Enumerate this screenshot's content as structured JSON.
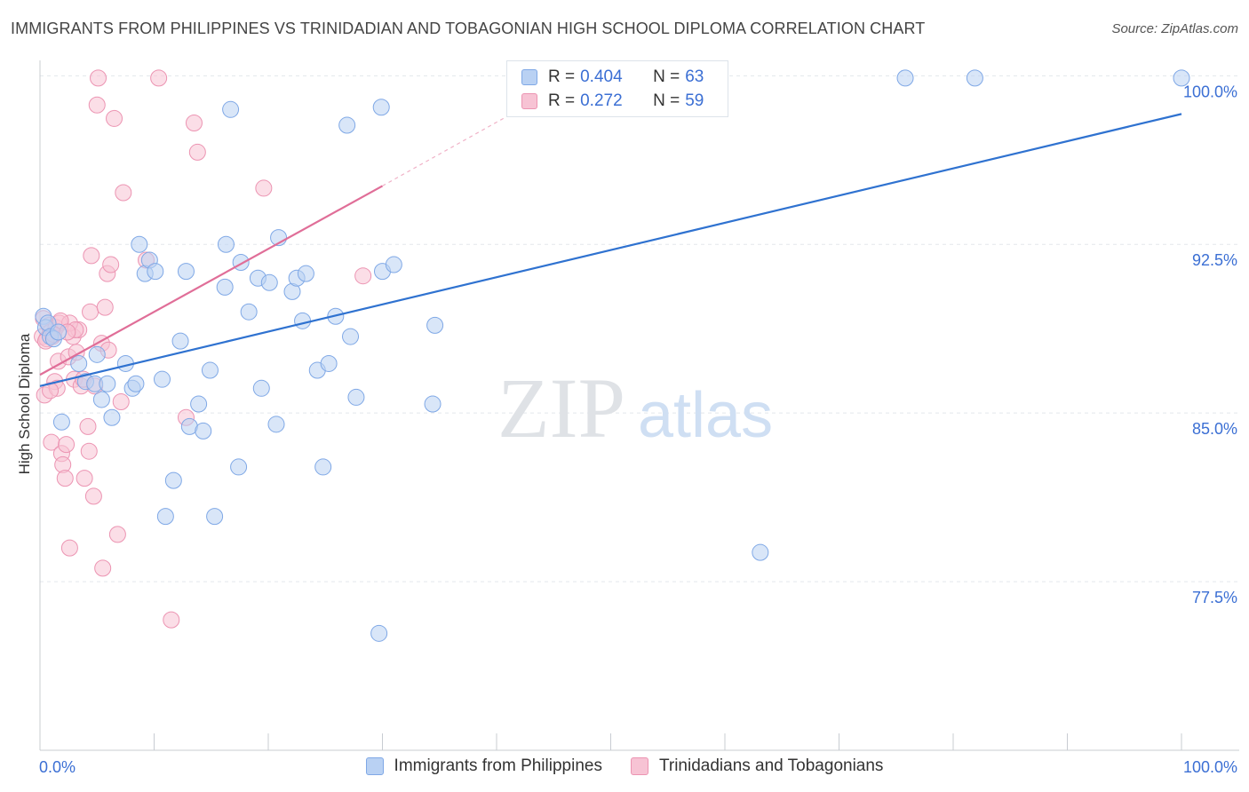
{
  "title": "IMMIGRANTS FROM PHILIPPINES VS TRINIDADIAN AND TOBAGONIAN HIGH SCHOOL DIPLOMA CORRELATION CHART",
  "source": "Source: ZipAtlas.com",
  "watermark": {
    "zip": "ZIP",
    "atlas": "atlas"
  },
  "legend_top": {
    "rows": [
      {
        "r_label": "R =",
        "r_value": "0.404",
        "n_label": "N =",
        "n_value": "63"
      },
      {
        "r_label": "R =",
        "r_value": "0.272",
        "n_label": "N =",
        "n_value": "59"
      }
    ]
  },
  "colors": {
    "blue_fill": "#b9d1f3",
    "blue_stroke": "#7fa8e6",
    "blue_line": "#2f72d0",
    "pink_fill": "#f7c3d4",
    "pink_stroke": "#ec94b2",
    "pink_line": "#e06e98",
    "axis_text": "#3b6fd4",
    "grid": "#e3e7ec"
  },
  "chart_data": {
    "type": "scatter",
    "title": "IMMIGRANTS FROM PHILIPPINES VS TRINIDADIAN AND TOBAGONIAN HIGH SCHOOL DIPLOMA CORRELATION CHART",
    "xlabel": "",
    "ylabel": "High School Diploma",
    "xlim": [
      0,
      100
    ],
    "ylim": [
      70.0,
      101.0
    ],
    "x_tick_labels": [
      "0.0%",
      "100.0%"
    ],
    "y_ticks": [
      77.5,
      85.0,
      92.5,
      100.0
    ],
    "y_tick_labels": [
      "77.5%",
      "85.0%",
      "92.5%",
      "100.0%"
    ],
    "grid": true,
    "legend_position": "bottom",
    "series": [
      {
        "name": "Immigrants from Philippines",
        "color": "#b9d1f3",
        "points": [
          [
            0.3,
            89.3
          ],
          [
            0.5,
            88.8
          ],
          [
            0.7,
            89.0
          ],
          [
            0.9,
            88.4
          ],
          [
            1.2,
            88.3
          ],
          [
            1.6,
            88.6
          ],
          [
            1.9,
            84.6
          ],
          [
            3.4,
            87.2
          ],
          [
            4.0,
            86.4
          ],
          [
            4.8,
            86.3
          ],
          [
            5.0,
            87.6
          ],
          [
            5.4,
            85.6
          ],
          [
            5.9,
            86.3
          ],
          [
            6.3,
            84.8
          ],
          [
            7.5,
            87.2
          ],
          [
            8.1,
            86.1
          ],
          [
            8.4,
            86.3
          ],
          [
            8.7,
            92.5
          ],
          [
            9.2,
            91.2
          ],
          [
            9.6,
            91.8
          ],
          [
            10.1,
            91.3
          ],
          [
            10.7,
            86.5
          ],
          [
            11.0,
            80.4
          ],
          [
            11.7,
            82.0
          ],
          [
            12.3,
            88.2
          ],
          [
            12.8,
            91.3
          ],
          [
            13.1,
            84.4
          ],
          [
            13.9,
            85.4
          ],
          [
            14.3,
            84.2
          ],
          [
            14.9,
            86.9
          ],
          [
            15.3,
            80.4
          ],
          [
            16.2,
            90.6
          ],
          [
            16.3,
            92.5
          ],
          [
            16.7,
            98.5
          ],
          [
            17.4,
            82.6
          ],
          [
            17.6,
            91.7
          ],
          [
            18.3,
            89.5
          ],
          [
            19.1,
            91.0
          ],
          [
            19.4,
            86.1
          ],
          [
            20.1,
            90.8
          ],
          [
            20.7,
            84.5
          ],
          [
            20.9,
            92.8
          ],
          [
            22.1,
            90.4
          ],
          [
            22.5,
            91.0
          ],
          [
            23.0,
            89.1
          ],
          [
            23.3,
            91.2
          ],
          [
            24.3,
            86.9
          ],
          [
            24.8,
            82.6
          ],
          [
            25.3,
            87.2
          ],
          [
            25.9,
            89.3
          ],
          [
            26.9,
            97.8
          ],
          [
            27.2,
            88.4
          ],
          [
            27.7,
            85.7
          ],
          [
            29.7,
            75.2
          ],
          [
            29.9,
            98.6
          ],
          [
            30.0,
            91.3
          ],
          [
            31.0,
            91.6
          ],
          [
            34.4,
            85.4
          ],
          [
            34.6,
            88.9
          ],
          [
            63.1,
            78.8
          ],
          [
            75.8,
            99.9
          ],
          [
            81.9,
            99.9
          ],
          [
            100.0,
            99.9
          ]
        ],
        "trendline": {
          "x": [
            0,
            100
          ],
          "y": [
            86.2,
            98.3
          ]
        }
      },
      {
        "name": "Trinidadians and Tobagonians",
        "color": "#f7c3d4",
        "points": [
          [
            0.2,
            88.4
          ],
          [
            0.3,
            89.2
          ],
          [
            0.4,
            85.8
          ],
          [
            0.6,
            88.3
          ],
          [
            0.8,
            88.9
          ],
          [
            0.9,
            88.6
          ],
          [
            1.0,
            83.7
          ],
          [
            1.1,
            88.4
          ],
          [
            1.3,
            86.4
          ],
          [
            1.4,
            88.8
          ],
          [
            1.5,
            86.1
          ],
          [
            1.6,
            87.3
          ],
          [
            1.7,
            89.0
          ],
          [
            1.9,
            83.2
          ],
          [
            2.0,
            82.7
          ],
          [
            2.2,
            82.1
          ],
          [
            2.3,
            83.6
          ],
          [
            2.5,
            87.5
          ],
          [
            2.6,
            79.0
          ],
          [
            2.9,
            88.4
          ],
          [
            3.0,
            86.5
          ],
          [
            3.2,
            87.7
          ],
          [
            3.4,
            88.7
          ],
          [
            3.6,
            86.2
          ],
          [
            3.8,
            86.5
          ],
          [
            3.9,
            82.1
          ],
          [
            4.2,
            84.4
          ],
          [
            4.3,
            83.3
          ],
          [
            4.4,
            89.5
          ],
          [
            4.5,
            92.0
          ],
          [
            4.7,
            81.3
          ],
          [
            4.8,
            86.2
          ],
          [
            5.0,
            98.7
          ],
          [
            5.1,
            99.9
          ],
          [
            5.4,
            88.1
          ],
          [
            5.5,
            78.1
          ],
          [
            5.7,
            89.7
          ],
          [
            5.9,
            91.2
          ],
          [
            6.0,
            87.8
          ],
          [
            6.2,
            91.6
          ],
          [
            6.5,
            98.1
          ],
          [
            6.8,
            79.6
          ],
          [
            7.1,
            85.5
          ],
          [
            7.3,
            94.8
          ],
          [
            9.3,
            91.8
          ],
          [
            10.4,
            99.9
          ],
          [
            11.5,
            75.8
          ],
          [
            12.8,
            84.8
          ],
          [
            13.5,
            97.9
          ],
          [
            13.8,
            96.6
          ],
          [
            19.6,
            95.0
          ],
          [
            28.3,
            91.1
          ],
          [
            2.6,
            89.0
          ],
          [
            1.8,
            89.1
          ],
          [
            3.1,
            88.7
          ],
          [
            0.5,
            88.2
          ],
          [
            1.2,
            88.5
          ],
          [
            2.4,
            88.6
          ],
          [
            0.9,
            86.0
          ]
        ],
        "trendline": {
          "x": [
            0,
            30
          ],
          "y": [
            86.7,
            95.1
          ]
        },
        "trendline_extension": {
          "x": [
            30,
            42
          ],
          "y": [
            95.1,
            98.5
          ]
        }
      }
    ]
  }
}
